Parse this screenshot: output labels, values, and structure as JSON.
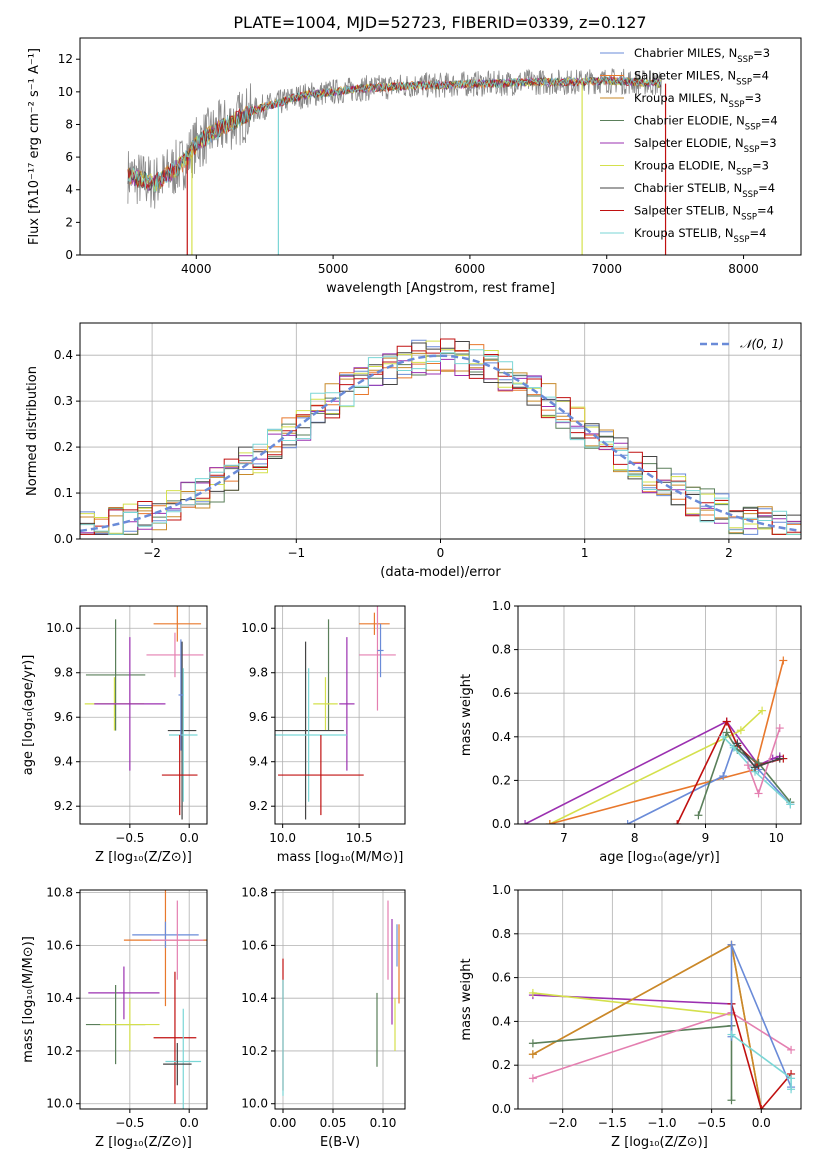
{
  "title": "PLATE=1004, MJD=52723, FIBERID=0339, z=0.127",
  "colors": [
    "#6a8bd8",
    "#e8782c",
    "#c88a2a",
    "#5a7f5a",
    "#9b30b0",
    "#d4e04c",
    "#444444",
    "#c01010",
    "#7ad6d6",
    "#888888",
    "#e47fb0"
  ],
  "chart_data": [
    {
      "id": "spectrum",
      "type": "line",
      "xlabel": "wavelength [Angstrom, rest frame]",
      "ylabel": "Flux [fλ10⁻¹⁷ erg cm⁻² s⁻¹ A⁻¹]",
      "xlim": [
        3150,
        8420
      ],
      "ylim": [
        0,
        13.3
      ],
      "xticks": [
        4000,
        5000,
        6000,
        7000,
        8000
      ],
      "yticks": [
        0,
        2,
        4,
        6,
        8,
        10,
        12
      ],
      "grid": false,
      "legend_position": "top-right",
      "data_color": "#888888",
      "data_x": [
        3500,
        3600,
        3700,
        3800,
        3900,
        4000,
        4100,
        4200,
        4300,
        4400,
        4500,
        4600,
        4700,
        4800,
        4900,
        5000,
        5200,
        5400,
        5600,
        5800,
        6000,
        6200,
        6400,
        6600,
        6800,
        7000,
        7200,
        7400
      ],
      "data_y": [
        4.9,
        4.6,
        4.4,
        5.0,
        5.6,
        6.8,
        7.4,
        7.9,
        8.3,
        8.8,
        9.1,
        9.3,
        9.6,
        9.8,
        9.9,
        10.0,
        10.2,
        10.3,
        10.4,
        10.4,
        10.5,
        10.5,
        10.6,
        10.6,
        10.6,
        10.7,
        10.6,
        10.5
      ],
      "series": [
        {
          "name": "Chabrier MILES, N",
          "sub": "SSP",
          "suffix": "=3",
          "color": "#6a8bd8"
        },
        {
          "name": "Salpeter MILES, N",
          "sub": "SSP",
          "suffix": "=4",
          "color": "#e8782c"
        },
        {
          "name": "Kroupa MILES, N",
          "sub": "SSP",
          "suffix": "=3",
          "color": "#c88a2a"
        },
        {
          "name": "Chabrier ELODIE, N",
          "sub": "SSP",
          "suffix": "=4",
          "color": "#5a7f5a"
        },
        {
          "name": "Salpeter ELODIE, N",
          "sub": "SSP",
          "suffix": "=3",
          "color": "#9b30b0"
        },
        {
          "name": "Kroupa ELODIE, N",
          "sub": "SSP",
          "suffix": "=3",
          "color": "#d4e04c"
        },
        {
          "name": "Chabrier STELIB, N",
          "sub": "SSP",
          "suffix": "=4",
          "color": "#444444"
        },
        {
          "name": "Salpeter STELIB, N",
          "sub": "SSP",
          "suffix": "=4",
          "color": "#c01010"
        },
        {
          "name": "Kroupa STELIB, N",
          "sub": "SSP",
          "suffix": "=4",
          "color": "#7ad6d6"
        }
      ]
    },
    {
      "id": "residuals",
      "type": "line",
      "xlabel": "(data-model)/error",
      "ylabel": "Normed distribution",
      "xlim": [
        -2.5,
        2.5
      ],
      "ylim": [
        0,
        0.47
      ],
      "xticks": [
        -2,
        -1,
        0,
        1,
        2
      ],
      "yticks": [
        0.0,
        0.1,
        0.2,
        0.3,
        0.4
      ],
      "grid": true,
      "legend_position": "top-right",
      "legend": "𝒩(0, 1)",
      "gauss_color": "#6a8bd8"
    },
    {
      "id": "age-z",
      "type": "scatter",
      "xlabel": "Z [log₁₀(Z/Z⊙)]",
      "ylabel": "age  [log₁₀(age/yr)]",
      "xlim": [
        -0.92,
        0.15
      ],
      "ylim": [
        9.12,
        10.1
      ],
      "xticks": [
        -0.5,
        0.0
      ],
      "yticks": [
        9.2,
        9.4,
        9.6,
        9.8,
        10.0
      ],
      "grid": true,
      "points": [
        {
          "x": -0.1,
          "y": 10.02,
          "xe": 0.2,
          "ye": 0.08,
          "c": "#e8782c"
        },
        {
          "x": -0.12,
          "y": 9.88,
          "xe": 0.24,
          "ye": 0.1,
          "c": "#e47fb0"
        },
        {
          "x": -0.62,
          "y": 9.79,
          "xe": 0.25,
          "ye": 0.25,
          "c": "#5a7f5a"
        },
        {
          "x": -0.63,
          "y": 9.66,
          "xe": 0.25,
          "ye": 0.12,
          "c": "#d4e04c"
        },
        {
          "x": -0.5,
          "y": 9.66,
          "xe": 0.3,
          "ye": 0.3,
          "c": "#9b30b0"
        },
        {
          "x": -0.06,
          "y": 9.54,
          "xe": 0.12,
          "ye": 0.4,
          "c": "#444444"
        },
        {
          "x": -0.05,
          "y": 9.52,
          "xe": 0.12,
          "ye": 0.3,
          "c": "#7ad6d6"
        },
        {
          "x": -0.08,
          "y": 9.34,
          "xe": 0.15,
          "ye": 0.18,
          "c": "#c01010"
        },
        {
          "x": -0.07,
          "y": 9.7,
          "xe": 0.02,
          "ye": 0.25,
          "c": "#6a8bd8"
        }
      ]
    },
    {
      "id": "age-mass",
      "type": "scatter",
      "xlabel": "mass [log₁₀(M/M⊙)]",
      "ylabel": "",
      "xlim": [
        9.95,
        10.8
      ],
      "ylim": [
        9.12,
        10.1
      ],
      "xticks": [
        10.0,
        10.5
      ],
      "yticks": [
        9.2,
        9.4,
        9.6,
        9.8,
        10.0
      ],
      "grid": true,
      "points": [
        {
          "x": 10.6,
          "y": 10.02,
          "xe": 0.1,
          "ye": 0.05,
          "c": "#e8782c"
        },
        {
          "x": 10.62,
          "y": 9.88,
          "xe": 0.12,
          "ye": 0.25,
          "c": "#e47fb0"
        },
        {
          "x": 10.3,
          "y": 9.79,
          "xe": 0.0,
          "ye": 0.25,
          "c": "#5a7f5a"
        },
        {
          "x": 10.28,
          "y": 9.66,
          "xe": 0.08,
          "ye": 0.12,
          "c": "#d4e04c"
        },
        {
          "x": 10.42,
          "y": 9.66,
          "xe": 0.05,
          "ye": 0.3,
          "c": "#9b30b0"
        },
        {
          "x": 10.15,
          "y": 9.54,
          "xe": 0.25,
          "ye": 0.4,
          "c": "#444444"
        },
        {
          "x": 10.17,
          "y": 9.52,
          "xe": 0.25,
          "ye": 0.3,
          "c": "#7ad6d6"
        },
        {
          "x": 10.25,
          "y": 9.34,
          "xe": 0.28,
          "ye": 0.18,
          "c": "#c01010"
        },
        {
          "x": 10.64,
          "y": 9.9,
          "xe": 0.02,
          "ye": 0.12,
          "c": "#6a8bd8"
        }
      ]
    },
    {
      "id": "weight-age",
      "type": "line",
      "xlabel": "age  [log₁₀(age/yr)]",
      "ylabel": "mass weight",
      "xlim": [
        6.35,
        10.35
      ],
      "ylim": [
        0,
        1
      ],
      "xticks": [
        7,
        8,
        9,
        10
      ],
      "yticks": [
        0.0,
        0.2,
        0.4,
        0.6,
        0.8,
        1.0
      ],
      "grid": true,
      "series": [
        {
          "x": [
            6.45,
            9.3,
            9.75,
            9.95,
            10.05
          ],
          "y": [
            0.0,
            0.47,
            0.27,
            0.3,
            0.31
          ],
          "c": "#9b30b0"
        },
        {
          "x": [
            6.8,
            9.5,
            9.8
          ],
          "y": [
            0.0,
            0.43,
            0.52
          ],
          "c": "#d4e04c"
        },
        {
          "x": [
            6.8,
            9.7,
            10.1
          ],
          "y": [
            0.0,
            0.25,
            0.75
          ],
          "c": "#e8782c"
        },
        {
          "x": [
            7.9,
            9.25,
            9.4,
            9.75,
            10.2
          ],
          "y": [
            0.0,
            0.22,
            0.36,
            0.25,
            0.09
          ],
          "c": "#6a8bd8"
        },
        {
          "x": [
            8.6,
            9.3,
            9.45,
            9.75,
            10.1
          ],
          "y": [
            0.0,
            0.47,
            0.36,
            0.27,
            0.3
          ],
          "c": "#c01010"
        },
        {
          "x": [
            8.9,
            9.3,
            9.45,
            9.75,
            10.2
          ],
          "y": [
            0.04,
            0.42,
            0.34,
            0.28,
            0.1
          ],
          "c": "#5a7f5a"
        },
        {
          "x": [
            9.25,
            9.4,
            9.7,
            10.2
          ],
          "y": [
            0.4,
            0.35,
            0.24,
            0.09
          ],
          "c": "#7ad6d6"
        },
        {
          "x": [
            9.6,
            9.75,
            10.05
          ],
          "y": [
            0.27,
            0.14,
            0.44
          ],
          "c": "#e47fb0"
        },
        {
          "x": [
            9.45,
            9.7,
            10.05
          ],
          "y": [
            0.37,
            0.26,
            0.3
          ],
          "c": "#444444"
        }
      ]
    },
    {
      "id": "mass-z",
      "type": "scatter",
      "xlabel": "Z [log₁₀(Z/Z⊙)]",
      "ylabel": "mass [log₁₀(M/M⊙)]",
      "xlim": [
        -0.92,
        0.15
      ],
      "ylim": [
        9.98,
        10.81
      ],
      "xticks": [
        -0.5,
        0.0
      ],
      "yticks": [
        10.0,
        10.2,
        10.4,
        10.6,
        10.8
      ],
      "grid": true,
      "points": [
        {
          "x": -0.2,
          "y": 10.62,
          "xe": 0.35,
          "ye": 0.25,
          "c": "#e8782c"
        },
        {
          "x": -0.2,
          "y": 10.64,
          "xe": 0.28,
          "ye": 0.05,
          "c": "#6a8bd8"
        },
        {
          "x": -0.1,
          "y": 10.62,
          "xe": 0.22,
          "ye": 0.15,
          "c": "#e47fb0"
        },
        {
          "x": -0.55,
          "y": 10.42,
          "xe": 0.3,
          "ye": 0.1,
          "c": "#9b30b0"
        },
        {
          "x": -0.62,
          "y": 10.3,
          "xe": 0.25,
          "ye": 0.15,
          "c": "#5a7f5a"
        },
        {
          "x": -0.5,
          "y": 10.3,
          "xe": 0.25,
          "ye": 0.1,
          "c": "#d4e04c"
        },
        {
          "x": -0.12,
          "y": 10.25,
          "xe": 0.18,
          "ye": 0.25,
          "c": "#c01010"
        },
        {
          "x": -0.05,
          "y": 10.16,
          "xe": 0.15,
          "ye": 0.2,
          "c": "#7ad6d6"
        },
        {
          "x": -0.1,
          "y": 10.15,
          "xe": 0.12,
          "ye": 0.08,
          "c": "#444444"
        }
      ]
    },
    {
      "id": "mass-ebv",
      "type": "scatter",
      "xlabel": "E(B-V)",
      "ylabel": "",
      "xlim": [
        -0.008,
        0.122
      ],
      "ylim": [
        9.98,
        10.81
      ],
      "xticks": [
        0.0,
        0.05,
        0.1
      ],
      "yticks": [
        10.0,
        10.2,
        10.4,
        10.6,
        10.8
      ],
      "grid": true,
      "points": [
        {
          "x": 0.0,
          "y": 10.3,
          "xe": 0.0,
          "ye": 0.25,
          "c": "#c01010"
        },
        {
          "x": 0.0,
          "y": 10.25,
          "xe": 0.0,
          "ye": 0.22,
          "c": "#7ad6d6"
        },
        {
          "x": 0.094,
          "y": 10.28,
          "xe": 0.0,
          "ye": 0.14,
          "c": "#5a7f5a"
        },
        {
          "x": 0.105,
          "y": 10.62,
          "xe": 0.0,
          "ye": 0.15,
          "c": "#e47fb0"
        },
        {
          "x": 0.109,
          "y": 10.5,
          "xe": 0.0,
          "ye": 0.2,
          "c": "#9b30b0"
        },
        {
          "x": 0.112,
          "y": 10.3,
          "xe": 0.0,
          "ye": 0.1,
          "c": "#d4e04c"
        },
        {
          "x": 0.116,
          "y": 10.53,
          "xe": 0.0,
          "ye": 0.15,
          "c": "#e8782c"
        },
        {
          "x": 0.114,
          "y": 10.6,
          "xe": 0.0,
          "ye": 0.08,
          "c": "#6a8bd8"
        }
      ]
    },
    {
      "id": "weight-z",
      "type": "line",
      "xlabel": "Z [log₁₀(Z/Z⊙)]",
      "ylabel": "mass weight",
      "xlim": [
        -2.45,
        0.4
      ],
      "ylim": [
        0,
        1
      ],
      "xticks": [
        -2.0,
        -1.5,
        -1.0,
        -0.5,
        0.0
      ],
      "yticks": [
        0.0,
        0.2,
        0.4,
        0.6,
        0.8,
        1.0
      ],
      "grid": true,
      "series": [
        {
          "x": [
            -2.3,
            -0.3
          ],
          "y": [
            0.52,
            0.48
          ],
          "c": "#9b30b0"
        },
        {
          "x": [
            -2.3,
            -0.3
          ],
          "y": [
            0.53,
            0.43
          ],
          "c": "#d4e04c"
        },
        {
          "x": [
            -2.3,
            -0.3,
            0.0
          ],
          "y": [
            0.25,
            0.75,
            0.0
          ],
          "c": "#e8782c"
        },
        {
          "x": [
            -2.3,
            -0.3,
            0.0
          ],
          "y": [
            0.25,
            0.75,
            0.0
          ],
          "c": "#c88a2a"
        },
        {
          "x": [
            -2.3,
            -0.3,
            -0.3
          ],
          "y": [
            0.3,
            0.38,
            0.04
          ],
          "c": "#5a7f5a"
        },
        {
          "x": [
            -2.3,
            -0.3,
            0.3
          ],
          "y": [
            0.14,
            0.44,
            0.27
          ],
          "c": "#e47fb0"
        },
        {
          "x": [
            -0.3,
            0.0,
            0.3
          ],
          "y": [
            0.48,
            0.0,
            0.16
          ],
          "c": "#c01010"
        },
        {
          "x": [
            -0.3,
            -0.3,
            0.3
          ],
          "y": [
            0.33,
            0.75,
            0.1
          ],
          "c": "#6a8bd8"
        },
        {
          "x": [
            -0.3,
            0.3,
            0.3
          ],
          "y": [
            0.34,
            0.14,
            0.09
          ],
          "c": "#7ad6d6"
        }
      ]
    }
  ]
}
